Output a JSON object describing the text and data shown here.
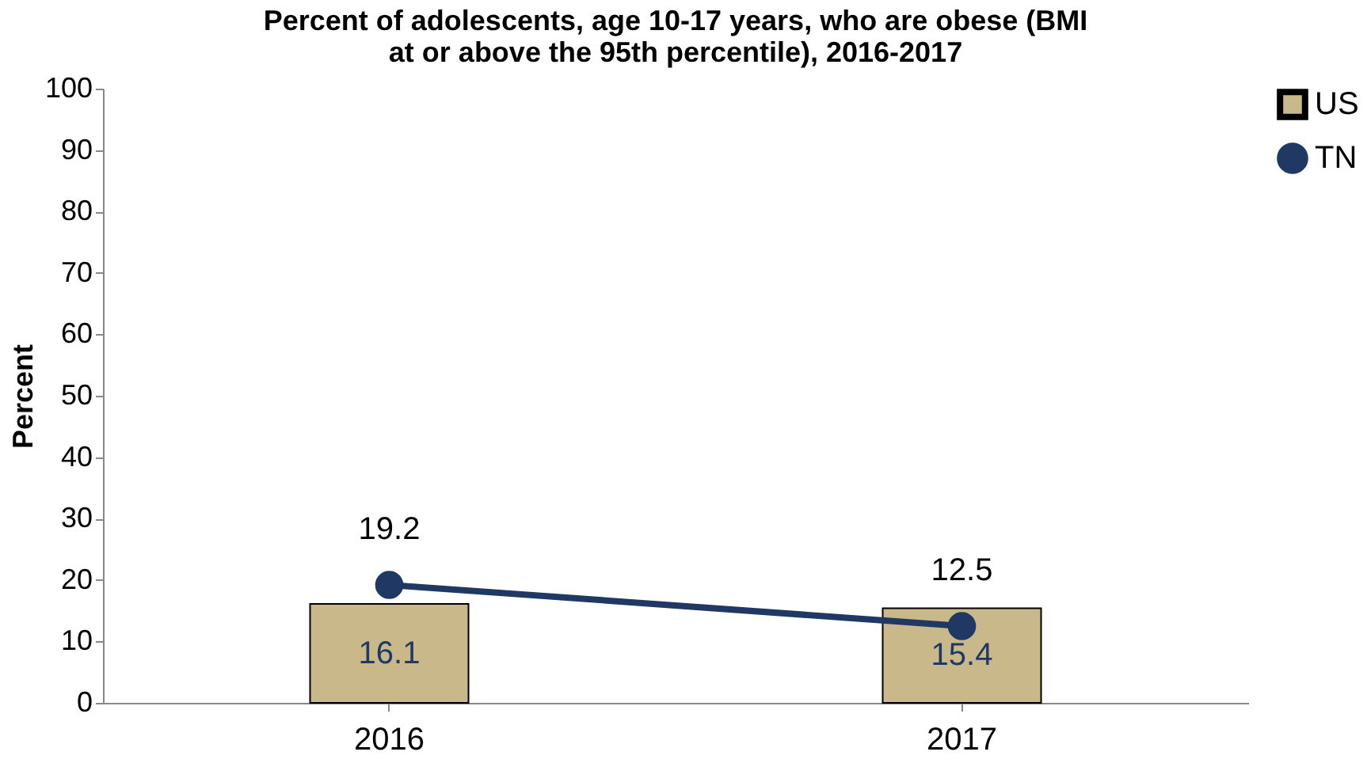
{
  "chart_data": {
    "type": "bar",
    "title": [
      "Percent of adolescents, age 10-17 years, who are obese (BMI",
      "at or above the 95th percentile), 2016-2017"
    ],
    "ylabel": "Percent",
    "categories": [
      "2016",
      "2017"
    ],
    "series": [
      {
        "name": "US",
        "color": "#c8b88a",
        "values": [
          16.1,
          15.4
        ]
      },
      {
        "name": "TN",
        "type": "line",
        "color": "#1f3864",
        "values": [
          19.2,
          12.5
        ],
        "marker": "circle"
      }
    ],
    "ylim": [
      0,
      100
    ],
    "yticks": [
      0,
      10,
      20,
      30,
      40,
      50,
      60,
      70,
      80,
      90,
      100
    ],
    "grid": false,
    "legend": "right",
    "data_labels": true
  }
}
